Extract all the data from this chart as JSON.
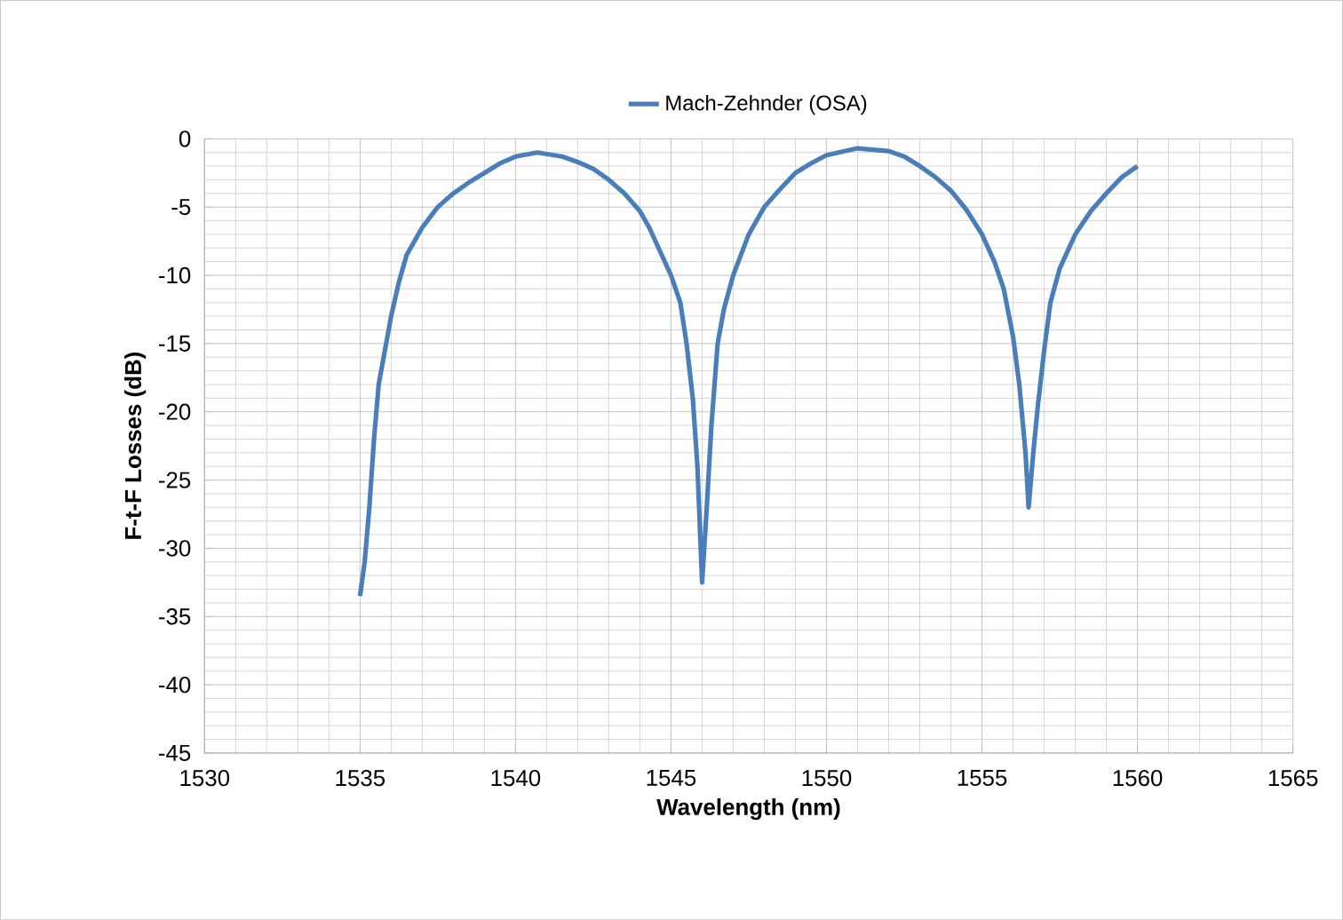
{
  "chart_data": {
    "type": "line",
    "xlabel": "Wavelength (nm)",
    "ylabel": "F-t-F Losses (dB)",
    "xlim": [
      1530,
      1565
    ],
    "xticks": [
      1530,
      1535,
      1540,
      1545,
      1550,
      1555,
      1560,
      1565
    ],
    "ylim": [
      -45,
      0
    ],
    "yticks": [
      -45,
      -40,
      -35,
      -30,
      -25,
      -20,
      -15,
      -10,
      -5,
      0
    ],
    "grid": true,
    "legend": "top",
    "marker": "none",
    "line_style": "solid",
    "series": [
      {
        "name": "Mach-Zehnder (OSA)",
        "color": "#4a7ebb",
        "x": [
          1535,
          1535.15,
          1535.3,
          1535.45,
          1535.6,
          1535.8,
          1536,
          1536.25,
          1536.5,
          1537,
          1537.5,
          1538,
          1538.5,
          1539,
          1539.5,
          1540,
          1540.7,
          1541.5,
          1542,
          1542.5,
          1543,
          1543.5,
          1544,
          1544.3,
          1544.7,
          1545,
          1545.3,
          1545.5,
          1545.7,
          1545.85,
          1546,
          1546.15,
          1546.3,
          1546.5,
          1546.7,
          1547,
          1547.5,
          1548,
          1548.5,
          1549,
          1549.5,
          1550,
          1551,
          1552,
          1552.5,
          1553,
          1553.5,
          1554,
          1554.5,
          1555,
          1555.4,
          1555.7,
          1556,
          1556.2,
          1556.4,
          1556.5,
          1556.65,
          1556.8,
          1557,
          1557.2,
          1557.5,
          1558,
          1558.5,
          1559,
          1559.5,
          1560
        ],
        "values": [
          -33.5,
          -31,
          -27,
          -22,
          -18,
          -15.5,
          -13,
          -10.5,
          -8.5,
          -6.5,
          -5,
          -4,
          -3.2,
          -2.5,
          -1.8,
          -1.3,
          -1,
          -1.3,
          -1.7,
          -2.2,
          -3,
          -4,
          -5.3,
          -6.5,
          -8.5,
          -10,
          -12,
          -15,
          -19,
          -24,
          -32.5,
          -27,
          -21,
          -15,
          -12.5,
          -10,
          -7,
          -5,
          -3.7,
          -2.5,
          -1.8,
          -1.2,
          -0.7,
          -0.9,
          -1.3,
          -2,
          -2.8,
          -3.8,
          -5.2,
          -7,
          -9,
          -11,
          -14.5,
          -18,
          -23,
          -27,
          -23,
          -19.5,
          -15.5,
          -12,
          -9.5,
          -7,
          -5.3,
          -4,
          -2.8,
          -2
        ]
      }
    ]
  }
}
